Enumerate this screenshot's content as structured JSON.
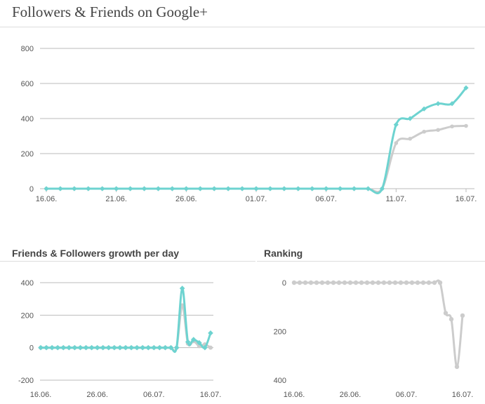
{
  "page_title": "Followers & Friends on Google+",
  "colors": {
    "friends": "#cccccc",
    "followers": "#6dd3d0",
    "grid": "#bbbbbb",
    "axis_text": "#555555"
  },
  "chart_data": [
    {
      "id": "totals",
      "type": "line",
      "title": "Followers & Friends on Google+",
      "x_tick_labels": [
        "16.06.",
        "21.06.",
        "26.06.",
        "01.07.",
        "06.07.",
        "11.07.",
        "16.07."
      ],
      "y_ticks": [
        0,
        200,
        400,
        600,
        800
      ],
      "ylim": [
        0,
        800
      ],
      "x_count": 31,
      "grid": true,
      "series": [
        {
          "role": "friends",
          "color": "#cccccc",
          "values": [
            0,
            0,
            0,
            0,
            0,
            0,
            0,
            0,
            0,
            0,
            0,
            0,
            0,
            0,
            0,
            0,
            0,
            0,
            0,
            0,
            0,
            0,
            0,
            0,
            0,
            260,
            285,
            325,
            335,
            355,
            358
          ]
        },
        {
          "role": "followers",
          "color": "#6dd3d0",
          "values": [
            0,
            0,
            0,
            0,
            0,
            0,
            0,
            0,
            0,
            0,
            0,
            0,
            0,
            0,
            0,
            0,
            0,
            0,
            0,
            0,
            0,
            0,
            0,
            0,
            0,
            365,
            400,
            455,
            485,
            485,
            575
          ]
        }
      ]
    },
    {
      "id": "growth",
      "type": "line",
      "title": "Friends & Followers growth per day",
      "x_tick_labels": [
        "16.06.",
        "26.06.",
        "06.07.",
        "16.07."
      ],
      "y_ticks": [
        400,
        200,
        0,
        -200
      ],
      "ylim": [
        -200,
        400
      ],
      "x_count": 31,
      "grid": true,
      "series": [
        {
          "role": "friends",
          "color": "#cccccc",
          "values": [
            0,
            0,
            0,
            0,
            0,
            0,
            0,
            0,
            0,
            0,
            0,
            0,
            0,
            0,
            0,
            0,
            0,
            0,
            0,
            0,
            0,
            0,
            0,
            0,
            0,
            260,
            25,
            40,
            10,
            20,
            0
          ]
        },
        {
          "role": "followers",
          "color": "#6dd3d0",
          "values": [
            0,
            0,
            0,
            0,
            0,
            0,
            0,
            0,
            0,
            0,
            0,
            0,
            0,
            0,
            0,
            0,
            0,
            0,
            0,
            0,
            0,
            0,
            0,
            0,
            0,
            365,
            35,
            50,
            30,
            0,
            90
          ]
        }
      ]
    },
    {
      "id": "ranking",
      "type": "line",
      "title": "Ranking",
      "x_tick_labels": [
        "16.06.",
        "26.06.",
        "06.07.",
        "16.07."
      ],
      "y_ticks": [
        0,
        200,
        400
      ],
      "ylim": [
        0,
        400
      ],
      "y_reversed": true,
      "x_count": 31,
      "grid": false,
      "series": [
        {
          "role": "ranking",
          "color": "#cccccc",
          "values": [
            0,
            0,
            0,
            0,
            0,
            0,
            0,
            0,
            0,
            0,
            0,
            0,
            0,
            0,
            0,
            0,
            0,
            0,
            0,
            0,
            0,
            0,
            0,
            0,
            0,
            0,
            0,
            125,
            150,
            345,
            135
          ]
        }
      ]
    }
  ]
}
